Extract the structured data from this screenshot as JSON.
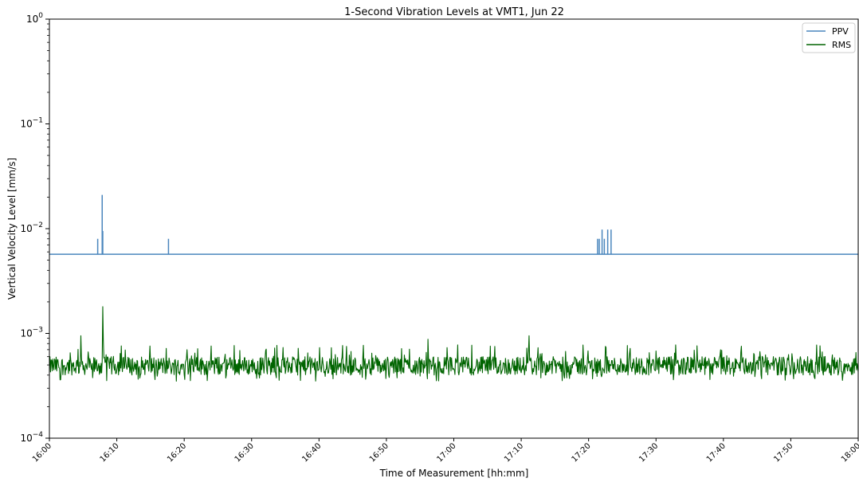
{
  "chart_data": {
    "type": "line",
    "title": "1-Second Vibration Levels at VMT1, Jun 22",
    "xlabel": "Time of Measurement [hh:mm]",
    "ylabel": "Vertical Velocity Level [mm/s]",
    "y_scale": "log",
    "ylim": [
      0.0001,
      1
    ],
    "xlim": [
      "16:00",
      "18:00"
    ],
    "x_ticks": [
      "16:00",
      "16:10",
      "16:20",
      "16:30",
      "16:40",
      "16:50",
      "17:00",
      "17:10",
      "17:20",
      "17:30",
      "17:40",
      "17:50",
      "18:00"
    ],
    "y_ticks": [
      {
        "value": 0.0001,
        "base": "10",
        "exp": "−4"
      },
      {
        "value": 0.001,
        "base": "10",
        "exp": "−3"
      },
      {
        "value": 0.01,
        "base": "10",
        "exp": "−2"
      },
      {
        "value": 0.1,
        "base": "10",
        "exp": "−1"
      },
      {
        "value": 1,
        "base": "10",
        "exp": "0"
      }
    ],
    "grid": false,
    "legend_position": "top-right",
    "series": [
      {
        "name": "PPV",
        "color": "#4a86bd",
        "baseline": 0.0057,
        "spikes": [
          {
            "time": "16:07:10",
            "value": 0.008
          },
          {
            "time": "16:07:50",
            "value": 0.021
          },
          {
            "time": "16:07:55",
            "value": 0.0095
          },
          {
            "time": "16:17:40",
            "value": 0.008
          },
          {
            "time": "17:21:20",
            "value": 0.008
          },
          {
            "time": "17:21:35",
            "value": 0.008
          },
          {
            "time": "17:22:00",
            "value": 0.0098
          },
          {
            "time": "17:22:20",
            "value": 0.008
          },
          {
            "time": "17:22:50",
            "value": 0.0098
          },
          {
            "time": "17:23:20",
            "value": 0.0098
          }
        ]
      },
      {
        "name": "RMS",
        "color": "#006400",
        "typical_low": 0.0004,
        "typical_high": 0.0006,
        "peaks": [
          {
            "time": "16:04:40",
            "value": 0.00095
          },
          {
            "time": "16:07:55",
            "value": 0.0018
          },
          {
            "time": "16:08:00",
            "value": 0.00085
          },
          {
            "time": "16:56:10",
            "value": 0.00088
          },
          {
            "time": "17:11:10",
            "value": 0.00095
          }
        ]
      }
    ]
  }
}
